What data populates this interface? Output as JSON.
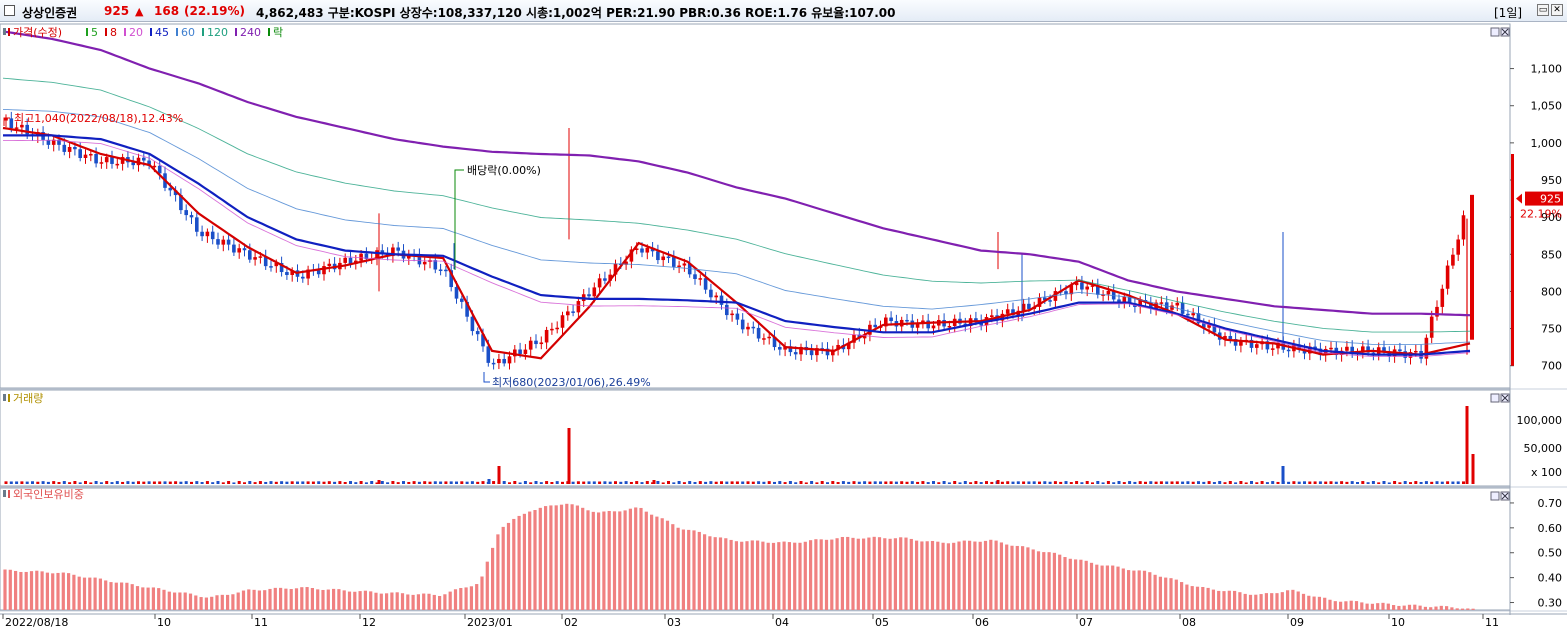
{
  "header": {
    "name": "상상인증권",
    "price": "925",
    "arrow": "▲",
    "change": "168",
    "change_pct": "(22.19%)",
    "info": "4,862,483  구분:KOSPI  상장수:108,337,120  시총:1,002억  PER:21.90  PBR:0.36  ROE:1.76  유보율:107.00",
    "period": "[1일]"
  },
  "price_panel": {
    "legend": [
      {
        "label": "가격(수정)",
        "color": "#d40000"
      },
      {
        "label": "5",
        "color": "#1fa01f"
      },
      {
        "label": "8",
        "color": "#d40000"
      },
      {
        "label": "20",
        "color": "#d050d0"
      },
      {
        "label": "45",
        "color": "#1020c0"
      },
      {
        "label": "60",
        "color": "#4080d0"
      },
      {
        "label": "120",
        "color": "#20a080"
      },
      {
        "label": "240",
        "color": "#8020b0"
      },
      {
        "label": "락",
        "color": "#0a8a0a"
      }
    ],
    "annotations": {
      "high": "최고1,040(2022/08/18),12.43%",
      "low": "최저680(2023/01/06),26.49%",
      "dividend": "배당락(0.00%)"
    },
    "current_price_label": "925",
    "current_pct_label": "22.19%"
  },
  "volume_panel": {
    "title": "거래량"
  },
  "foreign_panel": {
    "title": "외국인보유비중"
  },
  "colors": {
    "up": "#e00000",
    "down": "#1a4fc8",
    "ma5": "#1fa01f",
    "ma8": "#d40000",
    "ma20": "#d050d0",
    "ma45": "#1020c0",
    "ma60": "#4080d0",
    "ma120": "#20a080",
    "ma240": "#8020b0",
    "foreign": "#f08080",
    "volume_label": "#b09000",
    "foreign_label": "#e05050"
  },
  "chart_data": [
    {
      "type": "line",
      "name": "price",
      "y_ticks": [
        700,
        750,
        800,
        850,
        900,
        950,
        1000,
        1050,
        1100
      ],
      "ylim": [
        670,
        1160
      ],
      "x_labels": [
        "2022/08/18",
        "10",
        "11",
        "12",
        "2023/01",
        "02",
        "03",
        "04",
        "05",
        "06",
        "07",
        "08",
        "09",
        "10",
        "11"
      ],
      "x": [
        "2022/08/18",
        "2022/09/01",
        "2022/09/15",
        "2022/10/01",
        "2022/10/15",
        "2022/11/01",
        "2022/11/15",
        "2022/12/01",
        "2022/12/15",
        "2023/01/01",
        "2023/01/06",
        "2023/01/15",
        "2023/02/01",
        "2023/02/15",
        "2023/03/01",
        "2023/03/15",
        "2023/04/01",
        "2023/04/15",
        "2023/05/01",
        "2023/05/15",
        "2023/06/01",
        "2023/06/15",
        "2023/07/01",
        "2023/07/15",
        "2023/08/01",
        "2023/08/15",
        "2023/09/01",
        "2023/09/15",
        "2023/10/01",
        "2023/10/15",
        "2023/10/31"
      ],
      "series": [
        {
          "name": "가격(수정)",
          "values": [
            1030,
            1000,
            975,
            975,
            880,
            850,
            820,
            840,
            855,
            830,
            700,
            735,
            800,
            860,
            830,
            760,
            720,
            720,
            760,
            755,
            760,
            780,
            810,
            785,
            780,
            735,
            725,
            720,
            720,
            715,
            925
          ]
        },
        {
          "name": "8",
          "values": [
            1020,
            1010,
            985,
            970,
            905,
            860,
            825,
            835,
            850,
            845,
            720,
            710,
            780,
            865,
            840,
            785,
            725,
            720,
            755,
            758,
            760,
            775,
            815,
            795,
            770,
            735,
            730,
            715,
            720,
            715,
            730
          ]
        },
        {
          "name": "45",
          "values": [
            1010,
            1010,
            1005,
            985,
            945,
            900,
            870,
            855,
            850,
            848,
            820,
            795,
            790,
            790,
            788,
            785,
            760,
            752,
            745,
            745,
            758,
            770,
            785,
            785,
            770,
            750,
            735,
            720,
            715,
            715,
            720
          ]
        },
        {
          "name": "240",
          "values": [
            1150,
            1140,
            1125,
            1100,
            1080,
            1055,
            1035,
            1020,
            1005,
            995,
            988,
            985,
            983,
            975,
            960,
            940,
            925,
            905,
            885,
            870,
            855,
            850,
            840,
            815,
            800,
            790,
            780,
            775,
            770,
            770,
            768
          ]
        }
      ],
      "volume_ticks": [
        "100,000",
        "50,000",
        "x 100"
      ],
      "foreign_ticks": [
        "0.70",
        "0.60",
        "0.50",
        "0.40",
        "0.30"
      ]
    }
  ]
}
